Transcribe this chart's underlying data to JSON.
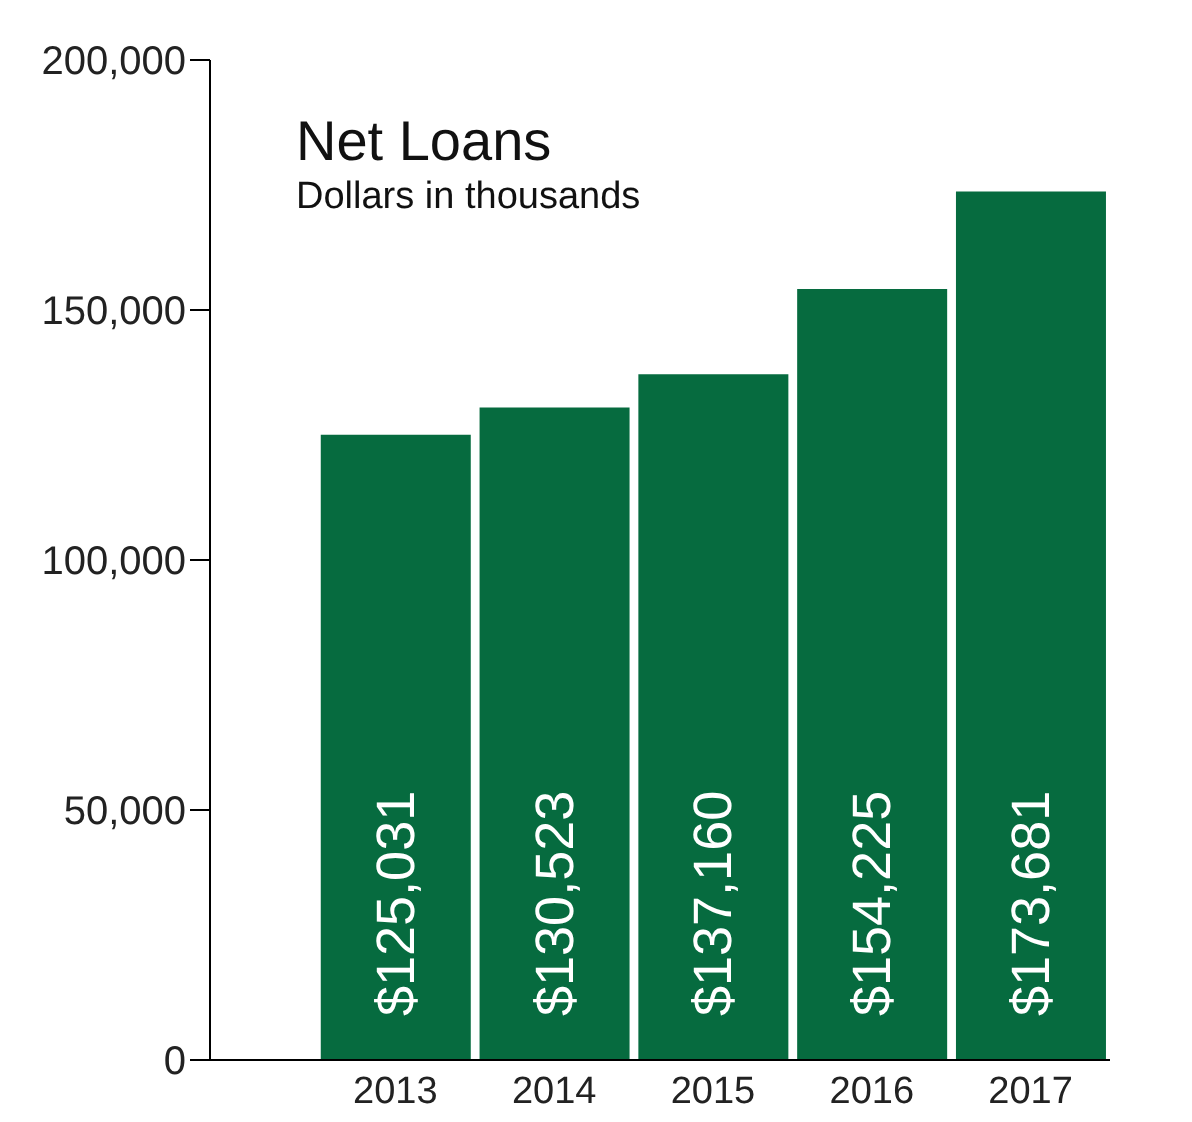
{
  "chart_data": {
    "type": "bar",
    "title": "Net Loans",
    "subtitle": "Dollars in thousands",
    "categories": [
      "2013",
      "2014",
      "2015",
      "2016",
      "2017"
    ],
    "values": [
      125031,
      130523,
      137160,
      154225,
      173681
    ],
    "value_labels": [
      "$125,031",
      "$130,523",
      "$137,160",
      "$154,225",
      "$173,681"
    ],
    "color": "#066b3f",
    "ylim": [
      0,
      200000
    ],
    "yticks": [
      0,
      {
        "value": 50000,
        "label": "50,000"
      },
      {
        "value": 100000,
        "label": "100,000"
      },
      {
        "value": 150000,
        "label": "150,000"
      },
      {
        "value": 200000,
        "label": "200,000"
      }
    ]
  }
}
